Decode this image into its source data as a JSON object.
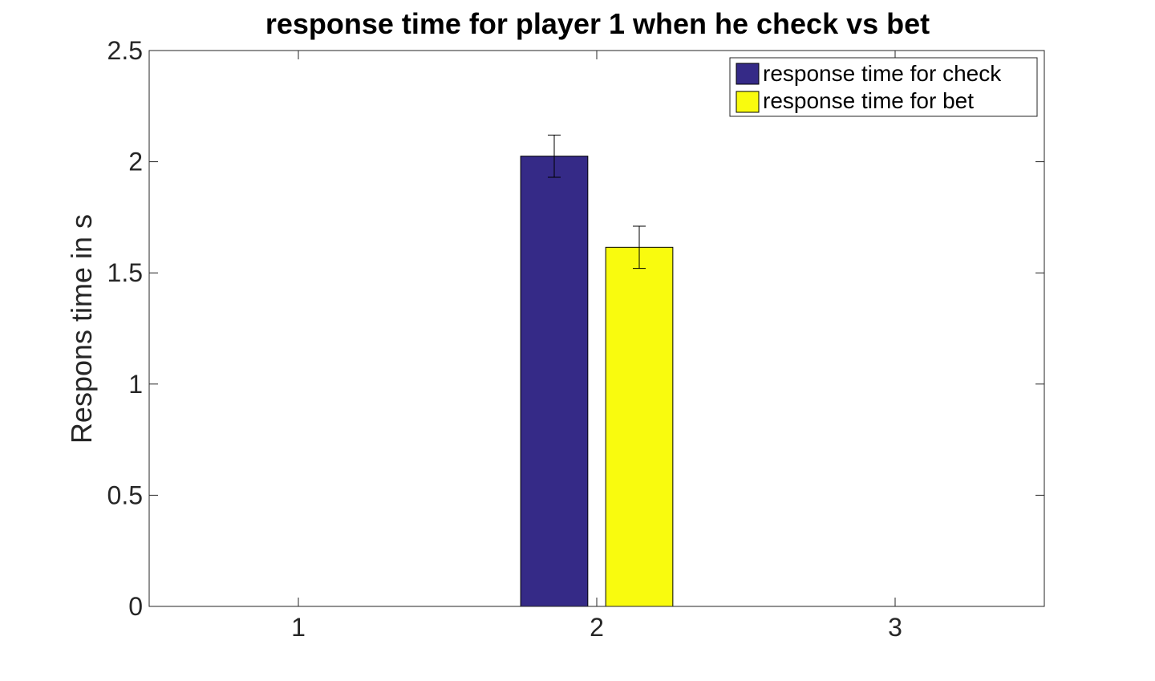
{
  "chart_data": {
    "type": "bar",
    "title": "response time for player 1 when he check vs bet",
    "xlabel": "",
    "ylabel": "Respons time in s",
    "categories": [
      "1",
      "2",
      "3"
    ],
    "xlim": [
      0.5,
      3.5
    ],
    "ylim": [
      0,
      2.5
    ],
    "y_ticks": [
      "0",
      "0.5",
      "1",
      "1.5",
      "2",
      "2.5"
    ],
    "x_ticks": [
      "1",
      "2",
      "3"
    ],
    "grid": false,
    "legend_position": "top-right",
    "series": [
      {
        "name": "response time for check",
        "color": "#352a87",
        "x": 2,
        "value": 2.025,
        "error": 0.095
      },
      {
        "name": "response time for bet",
        "color": "#f9fb0e",
        "x": 2,
        "value": 1.615,
        "error": 0.095
      }
    ]
  }
}
